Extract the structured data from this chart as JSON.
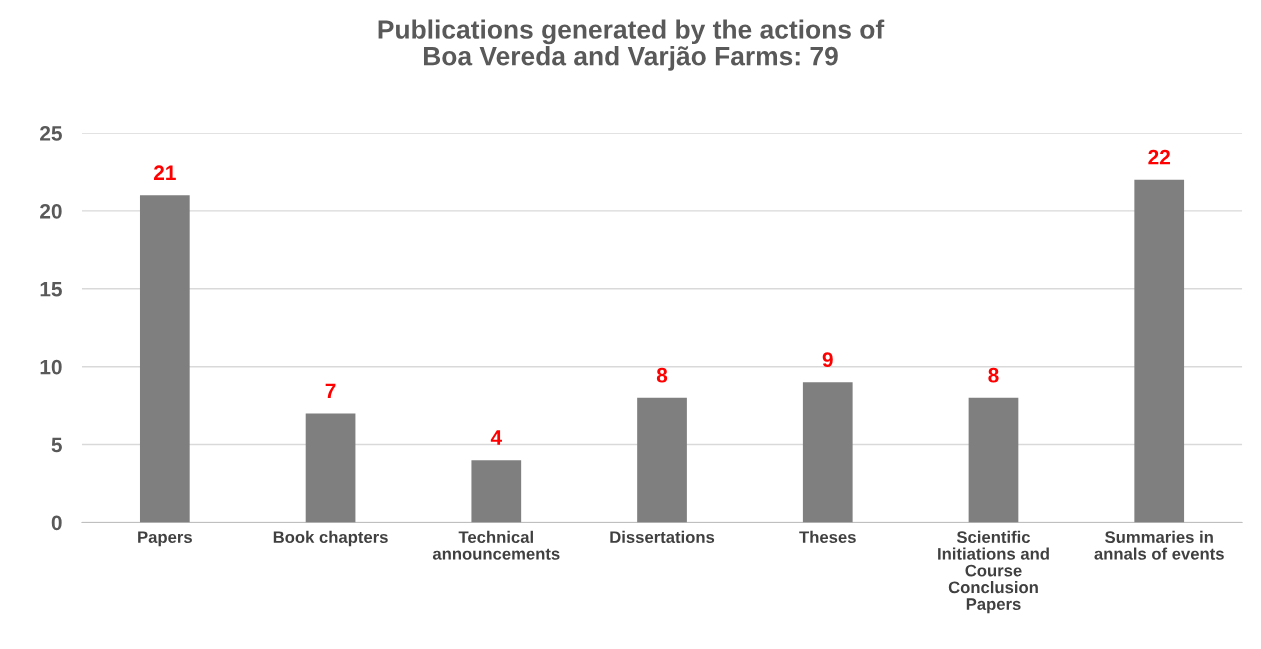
{
  "chart_data": {
    "type": "bar",
    "title": "Publications generated by the actions of\nBoa Vereda and Varjão Farms: 79",
    "categories": [
      "Papers",
      "Book chapters",
      "Technical\nannouncements",
      "Dissertations",
      "Theses",
      "Scientific\nInitiations and\nCourse\nConclusion\nPapers",
      "Summaries in\nannals of events"
    ],
    "values": [
      21,
      7,
      4,
      8,
      9,
      8,
      22
    ],
    "color": "#7f7f7f",
    "ylim": [
      0,
      25
    ],
    "yticks": [
      0,
      5,
      10,
      15,
      20,
      25
    ],
    "grid": "y",
    "data_labels": true
  }
}
